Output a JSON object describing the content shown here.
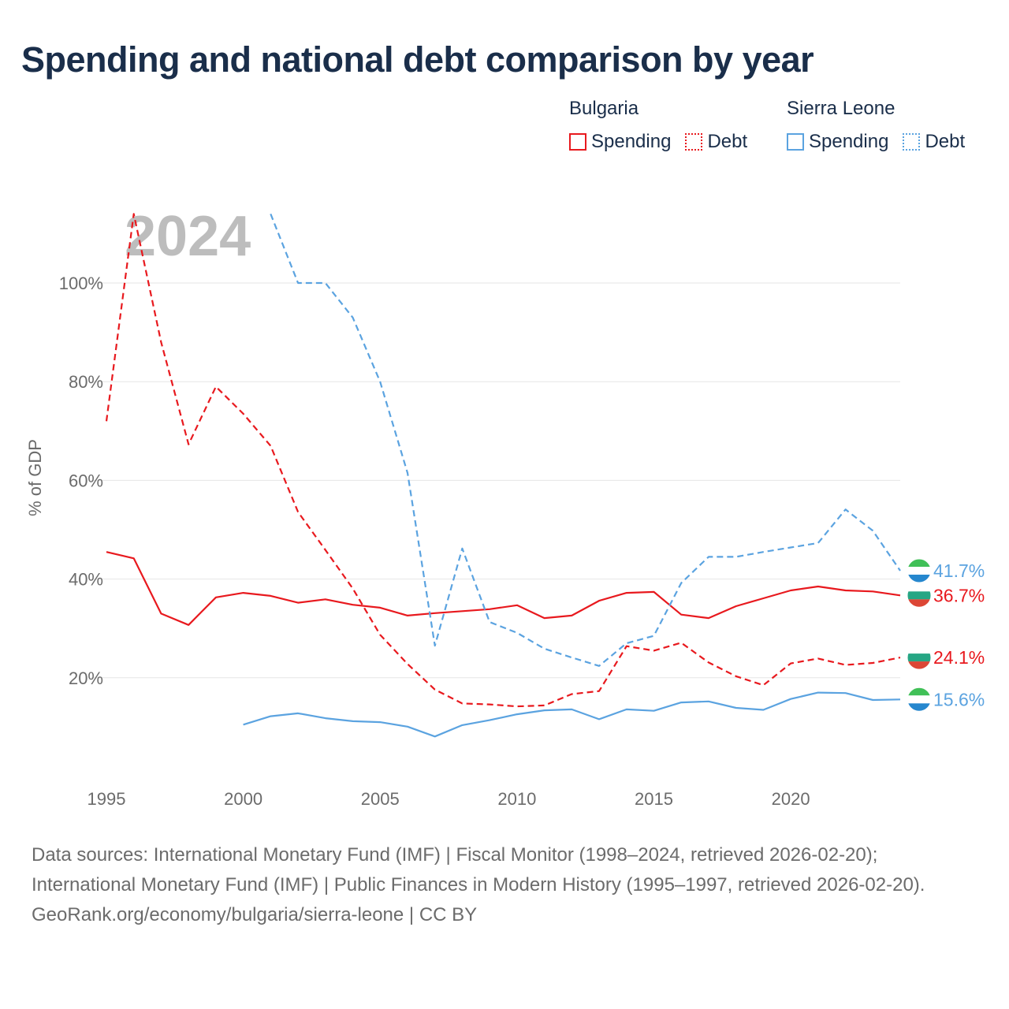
{
  "title": "Spending and national debt comparison by year",
  "legend": {
    "groups": [
      {
        "name": "Bulgaria",
        "color": "#e8191e",
        "spending_label": "Spending",
        "debt_label": "Debt"
      },
      {
        "name": "Sierra Leone",
        "color": "#5ba3e0",
        "spending_label": "Spending",
        "debt_label": "Debt"
      }
    ]
  },
  "footer": {
    "sources": "Data sources: International Monetary Fund (IMF) | Fiscal Monitor (1998–2024, retrieved 2026-02-20); International Monetary Fund (IMF) | Public Finances in Modern History (1995–1997, retrieved 2026-02-20).",
    "credit": "GeoRank.org/economy/bulgaria/sierra-leone | CC BY"
  },
  "chart_data": {
    "type": "line",
    "title": "Spending and national debt comparison by year",
    "year_label": "2024",
    "xlabel": "",
    "ylabel": "% of GDP",
    "xlim": [
      1995,
      2024
    ],
    "ylim": [
      0,
      115
    ],
    "x_ticks": [
      1995,
      2000,
      2005,
      2010,
      2015,
      2020
    ],
    "y_ticks": [
      20,
      40,
      60,
      80,
      100
    ],
    "y_tick_labels": [
      "20%",
      "40%",
      "60%",
      "80%",
      "100%"
    ],
    "grid": true,
    "series": [
      {
        "name": "Bulgaria Spending",
        "country": "Bulgaria",
        "color": "#e8191e",
        "dashed": false,
        "end_label": "36.7%",
        "x": [
          1995,
          1996,
          1997,
          1998,
          1999,
          2000,
          2001,
          2002,
          2003,
          2004,
          2005,
          2006,
          2007,
          2008,
          2009,
          2010,
          2011,
          2012,
          2013,
          2014,
          2015,
          2016,
          2017,
          2018,
          2019,
          2020,
          2021,
          2022,
          2023,
          2024
        ],
        "values": [
          45.5,
          44.2,
          33.0,
          30.7,
          36.3,
          37.2,
          36.6,
          35.2,
          35.9,
          34.8,
          34.2,
          32.6,
          33.1,
          33.5,
          33.9,
          34.7,
          32.1,
          32.6,
          35.6,
          37.2,
          37.4,
          32.8,
          32.1,
          34.5,
          36.1,
          37.7,
          38.5,
          37.7,
          37.5,
          36.7
        ]
      },
      {
        "name": "Bulgaria Debt",
        "country": "Bulgaria",
        "color": "#e8191e",
        "dashed": true,
        "end_label": "24.1%",
        "x": [
          1995,
          1996,
          1997,
          1998,
          1999,
          2000,
          2001,
          2002,
          2003,
          2004,
          2005,
          2006,
          2007,
          2008,
          2009,
          2010,
          2011,
          2012,
          2013,
          2014,
          2015,
          2016,
          2017,
          2018,
          2019,
          2020,
          2021,
          2022,
          2023,
          2024
        ],
        "values": [
          72.0,
          114.0,
          88.0,
          67.3,
          79.0,
          73.5,
          67.0,
          53.6,
          45.9,
          38.1,
          28.7,
          22.8,
          17.6,
          14.8,
          14.6,
          14.2,
          14.4,
          16.7,
          17.3,
          26.4,
          25.5,
          27.1,
          23.1,
          20.3,
          18.5,
          22.9,
          23.9,
          22.6,
          23.0,
          24.1
        ]
      },
      {
        "name": "Sierra Leone Spending",
        "country": "Sierra Leone",
        "color": "#5ba3e0",
        "dashed": false,
        "end_label": "15.6%",
        "x": [
          2000,
          2001,
          2002,
          2003,
          2004,
          2005,
          2006,
          2007,
          2008,
          2009,
          2010,
          2011,
          2012,
          2013,
          2014,
          2015,
          2016,
          2017,
          2018,
          2019,
          2020,
          2021,
          2022,
          2023,
          2024
        ],
        "values": [
          10.5,
          12.2,
          12.8,
          11.8,
          11.2,
          11.0,
          10.1,
          8.1,
          10.4,
          11.4,
          12.6,
          13.4,
          13.6,
          11.6,
          13.6,
          13.3,
          15.0,
          15.2,
          13.9,
          13.5,
          15.7,
          17.0,
          16.9,
          15.5,
          15.6
        ]
      },
      {
        "name": "Sierra Leone Debt",
        "country": "Sierra Leone",
        "color": "#5ba3e0",
        "dashed": true,
        "end_label": "41.7%",
        "x": [
          2001,
          2002,
          2003,
          2004,
          2005,
          2006,
          2007,
          2008,
          2009,
          2010,
          2011,
          2012,
          2013,
          2014,
          2015,
          2016,
          2017,
          2018,
          2019,
          2020,
          2021,
          2022,
          2023,
          2024
        ],
        "values": [
          114.0,
          100.0,
          100.0,
          93.0,
          80.0,
          61.5,
          26.5,
          46.2,
          31.3,
          29.1,
          25.9,
          24.1,
          22.4,
          27.0,
          28.5,
          39.2,
          44.5,
          44.5,
          45.5,
          46.4,
          47.3,
          54.1,
          49.8,
          41.7
        ]
      }
    ]
  }
}
